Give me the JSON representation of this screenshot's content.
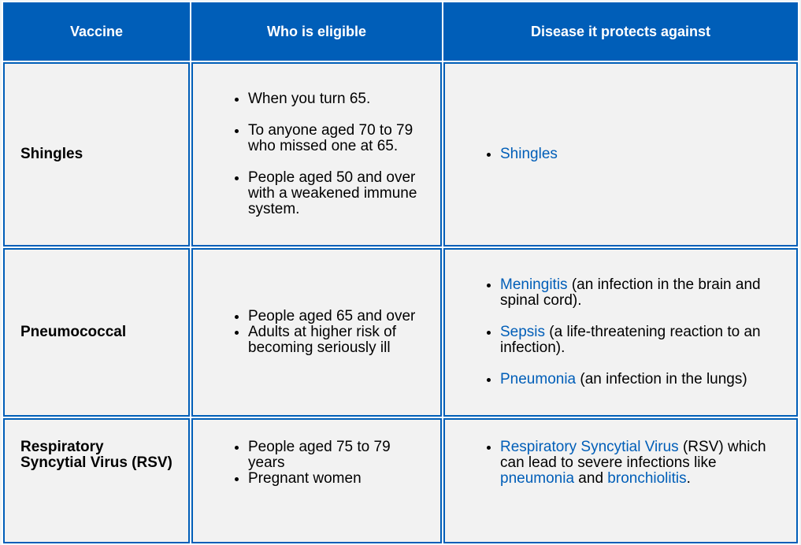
{
  "headers": [
    "Vaccine",
    "Who is eligible",
    "Disease it protects against"
  ],
  "rows": [
    {
      "vaccine": "Shingles",
      "eligible": [
        "When you turn 65.",
        "To anyone aged 70 to 79 who missed one at 65.",
        "People aged 50 and over with a weakened immune system."
      ],
      "diseases": [
        {
          "link": "Shingles",
          "text": ""
        }
      ]
    },
    {
      "vaccine": "Pneumococcal",
      "eligible": [
        "People aged 65 and over",
        "Adults at higher risk of becoming seriously ill"
      ],
      "diseases": [
        {
          "link": "Meningitis",
          "text": " (an infection in the brain and spinal cord)."
        },
        {
          "link": "Sepsis",
          "text": " (a life-threatening reaction to an infection)."
        },
        {
          "link": "Pneumonia",
          "text": " (an infection in the lungs)"
        }
      ]
    },
    {
      "vaccine": "Respiratory Syncytial Virus (RSV)",
      "eligible": [
        "People aged 75 to 79 years",
        "Pregnant women"
      ],
      "disease_rsv": {
        "link1": "Respiratory Syncytial Virus",
        "text1": " (RSV) which can lead to severe infections like ",
        "link2": "pneumonia",
        "text2": " and ",
        "link3": "bronchiolitis",
        "text3": "."
      }
    }
  ],
  "colors": {
    "header_bg": "#005eb8",
    "cell_bg": "#f2f2f2",
    "link": "#005eb8"
  }
}
